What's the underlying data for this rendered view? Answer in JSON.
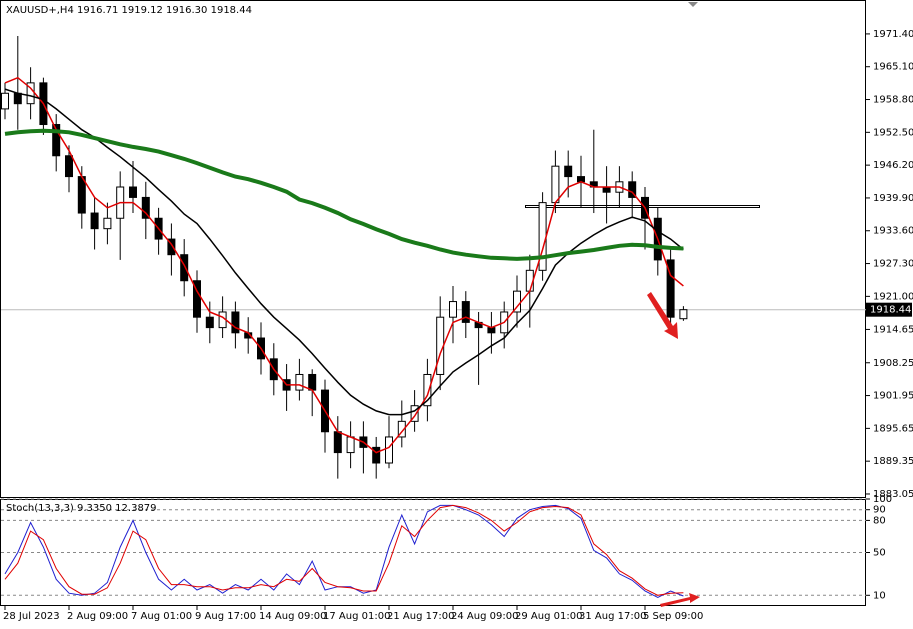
{
  "chart_data": [
    {
      "type": "candlestick",
      "title": "XAUUSD+,H4  1916.71 1919.12 1916.30 1918.44",
      "categories": [
        "28 Jul 2023",
        null,
        null,
        null,
        null,
        "2 Aug 09:00",
        null,
        null,
        null,
        null,
        "7 Aug 01:00",
        null,
        null,
        null,
        null,
        "9 Aug 17:00",
        null,
        null,
        null,
        null,
        "14 Aug 09:00",
        null,
        null,
        null,
        null,
        "17 Aug 01:00",
        null,
        null,
        null,
        null,
        "21 Aug 17:00",
        null,
        null,
        null,
        null,
        "24 Aug 09:00",
        null,
        null,
        null,
        null,
        "29 Aug 01:00",
        null,
        null,
        null,
        null,
        "31 Aug 17:00",
        null,
        null,
        null,
        null,
        "5 Sep 09:00",
        null,
        null,
        null
      ],
      "open": [
        1957,
        1960,
        1958,
        1962,
        1954,
        1948,
        1944,
        1937,
        1934,
        1936,
        1942,
        1940,
        1936,
        1932,
        1929,
        1924,
        1917,
        1915,
        1918,
        1914,
        1913,
        1909,
        1905,
        1903,
        1906,
        1903,
        1895,
        1891,
        1894,
        1892,
        1889,
        1894,
        1897,
        1900,
        1906,
        1917,
        1920,
        1916,
        1915,
        1914,
        1918,
        1922,
        1926,
        1939,
        1946,
        1944,
        1943,
        1942,
        1941,
        1943,
        1940,
        1936,
        1928,
        1916.71
      ],
      "high": [
        1962,
        1971,
        1965,
        1963,
        1956,
        1950,
        1946,
        1940,
        1939,
        1945,
        1947,
        1943,
        1938,
        1935,
        1932,
        1926,
        1920,
        1921,
        1920,
        1917,
        1916,
        1912,
        1908,
        1909,
        1907,
        1905,
        1898,
        1897,
        1897,
        1894,
        1898,
        1901,
        1903,
        1909,
        1921,
        1923,
        1922,
        1918,
        1918,
        1920,
        1925,
        1929,
        1941,
        1949,
        1949,
        1948,
        1953,
        1946,
        1946,
        1945,
        1942,
        1938,
        1930,
        1919.12
      ],
      "low": [
        1955,
        1953,
        1955,
        1952,
        1945,
        1941,
        1934,
        1930,
        1931,
        1928,
        1937,
        1932,
        1929,
        1925,
        1921,
        1914,
        1912,
        1913,
        1911,
        1910,
        1906,
        1902,
        1899,
        1901,
        1898,
        1891,
        1886,
        1888,
        1887,
        1886,
        1888,
        1892,
        1895,
        1897,
        1903,
        1912,
        1913,
        1904,
        1910,
        1911,
        1915,
        1915,
        1924,
        1937,
        1940,
        1938,
        1937,
        1935,
        1938,
        1936,
        1930,
        1925,
        1915,
        1916.3
      ],
      "close": [
        1960,
        1958,
        1962,
        1954,
        1948,
        1944,
        1937,
        1934,
        1936,
        1942,
        1940,
        1936,
        1932,
        1929,
        1924,
        1917,
        1915,
        1918,
        1914,
        1913,
        1909,
        1905,
        1903,
        1906,
        1903,
        1895,
        1891,
        1894,
        1892,
        1889,
        1894,
        1897,
        1900,
        1906,
        1917,
        1920,
        1916,
        1915,
        1914,
        1918,
        1922,
        1926,
        1939,
        1946,
        1944,
        1943,
        1942,
        1941,
        1943,
        1940,
        1936,
        1928,
        1917,
        1918.44
      ],
      "series": [
        {
          "color": "#e00000",
          "values": [
            1962,
            1963,
            1961,
            1958,
            1953,
            1949,
            1944,
            1940,
            1938,
            1939,
            1939,
            1937,
            1934,
            1931,
            1927,
            1922,
            1918,
            1917,
            1915,
            1914,
            1911,
            1907,
            1904,
            1904,
            1903,
            1899,
            1895,
            1894,
            1893,
            1891,
            1892,
            1895,
            1898,
            1902,
            1910,
            1916,
            1917,
            1916,
            1915,
            1916,
            1919,
            1922,
            1930,
            1939,
            1942,
            1943,
            1942,
            1942,
            1942,
            1941,
            1938,
            1932,
            1925,
            1923
          ]
        },
        {
          "color": "#000000",
          "values": [
            1960.8,
            1960,
            1959.5,
            1958.8,
            1957,
            1955,
            1953,
            1951.5,
            1949.6,
            1947.8,
            1945.8,
            1943.8,
            1941.5,
            1939.3,
            1936.8,
            1935,
            1932,
            1928.8,
            1925.5,
            1922.5,
            1919.6,
            1917,
            1914.8,
            1912.6,
            1910,
            1907.2,
            1904.5,
            1902,
            1900.3,
            1899,
            1898.3,
            1898.3,
            1899,
            1901,
            1903.8,
            1906.5,
            1908.2,
            1909.8,
            1911.5,
            1913,
            1915.8,
            1918.3,
            1922.5,
            1927,
            1929.3,
            1931.2,
            1932.8,
            1934.2,
            1935.3,
            1936.2,
            1935.5,
            1933.5,
            1932,
            1930
          ]
        },
        {
          "color": "#1a7a1a",
          "values": [
            1952.2,
            1952.5,
            1952.7,
            1952.8,
            1952.7,
            1952.5,
            1952,
            1951.4,
            1950.8,
            1950.2,
            1949.7,
            1949.3,
            1948.8,
            1948.1,
            1947.4,
            1946.6,
            1945.7,
            1944.8,
            1944,
            1943.5,
            1942.8,
            1942,
            1941.1,
            1939.6,
            1938.9,
            1938,
            1937,
            1935.8,
            1934.9,
            1933.9,
            1933,
            1932,
            1931.3,
            1930.7,
            1930,
            1929.4,
            1929,
            1928.7,
            1928.4,
            1928.3,
            1928.2,
            1928.3,
            1928.5,
            1928.9,
            1929.3,
            1929.6,
            1929.9,
            1930.3,
            1930.7,
            1930.9,
            1930.8,
            1930.5,
            1930.3,
            1930.2
          ]
        }
      ],
      "level_line": 1938.25,
      "last_price": 1918.44,
      "ylim": [
        1882.47,
        1977.72
      ],
      "yticks": [
        {
          "value": 1971.4,
          "label": "1971.40"
        },
        {
          "value": 1965.1,
          "label": "1965.10"
        },
        {
          "value": 1958.8,
          "label": "1958.80"
        },
        {
          "value": 1952.5,
          "label": "1952.50"
        },
        {
          "value": 1946.2,
          "label": "1946.20"
        },
        {
          "value": 1939.9,
          "label": "1939.90"
        },
        {
          "value": 1933.6,
          "label": "1933.60"
        },
        {
          "value": 1927.3,
          "label": "1927.30"
        },
        {
          "value": 1921,
          "label": "1921.00"
        },
        1914.65,
        1908.25,
        1901.95,
        1895.65,
        1889.35,
        1883.05
      ]
    },
    {
      "type": "line",
      "title": "Stoch(13,3,3) 9.3350 12.3879",
      "series": [
        {
          "color": "#2020d0",
          "values": [
            30,
            50,
            78,
            55,
            25,
            12,
            10,
            12,
            22,
            55,
            80,
            50,
            25,
            15,
            25,
            15,
            20,
            12,
            20,
            15,
            25,
            15,
            30,
            20,
            42,
            15,
            18,
            18,
            12,
            15,
            55,
            85,
            58,
            88,
            94,
            94,
            90,
            85,
            76,
            65,
            82,
            90,
            93,
            94,
            91,
            82,
            52,
            45,
            30,
            24,
            14,
            8,
            14,
            9.335
          ]
        },
        {
          "color": "#e00000",
          "values": [
            25,
            40,
            70,
            62,
            35,
            18,
            11,
            11,
            17,
            40,
            70,
            62,
            35,
            20,
            20,
            18,
            18,
            15,
            17,
            17,
            20,
            18,
            25,
            23,
            35,
            22,
            18,
            17,
            14,
            14,
            40,
            75,
            65,
            80,
            92,
            94,
            92,
            87,
            80,
            70,
            78,
            88,
            92,
            93,
            92,
            85,
            58,
            48,
            33,
            26,
            16,
            10,
            12,
            12.3879
          ]
        }
      ],
      "ylim": [
        0,
        100
      ],
      "yticks": [
        100,
        90,
        80,
        50,
        10
      ]
    }
  ]
}
